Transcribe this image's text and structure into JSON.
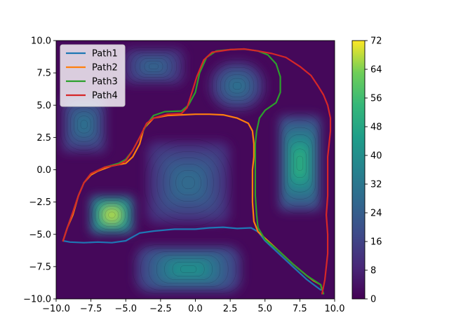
{
  "chart_data": {
    "type": "line",
    "title": "",
    "xlabel": "",
    "ylabel": "",
    "xlim": [
      -10,
      10
    ],
    "ylim": [
      -10,
      10
    ],
    "xticks": [
      "−10.0",
      "−7.5",
      "−5.0",
      "−2.5",
      "0.0",
      "2.5",
      "5.0",
      "7.5",
      "10.0"
    ],
    "yticks": [
      "10.0",
      "7.5",
      "5.0",
      "2.5",
      "0.0",
      "−2.5",
      "−5.0",
      "−7.5",
      "−10.0"
    ],
    "xtick_values": [
      -10,
      -7.5,
      -5,
      -2.5,
      0,
      2.5,
      5,
      7.5,
      10
    ],
    "ytick_values": [
      10,
      7.5,
      5,
      2.5,
      0,
      -2.5,
      -5,
      -7.5,
      -10
    ],
    "legend_position": "top-left",
    "background": "filled contour cost map (viridis)",
    "colorbar": {
      "colormap": "viridis",
      "range": [
        0,
        72
      ],
      "ticks": [
        "72",
        "64",
        "56",
        "48",
        "40",
        "32",
        "24",
        "16",
        "8",
        "0"
      ],
      "tick_values": [
        72,
        64,
        56,
        48,
        40,
        32,
        24,
        16,
        8,
        0
      ]
    },
    "cost_regions": [
      {
        "center": [
          -6,
          -3.5
        ],
        "peak": 68,
        "shape": "square"
      },
      {
        "center": [
          -8,
          3.5
        ],
        "peak": 30,
        "shape": "rectangle"
      },
      {
        "center": [
          -3,
          8
        ],
        "peak": 26,
        "shape": "rectangle"
      },
      {
        "center": [
          3,
          6.5
        ],
        "peak": 30,
        "shape": "oval"
      },
      {
        "center": [
          -0.5,
          -1
        ],
        "peak": 28,
        "shape": "square"
      },
      {
        "center": [
          7.5,
          0.5
        ],
        "peak": 50,
        "shape": "rectangle"
      },
      {
        "center": [
          -0.5,
          -7.7
        ],
        "peak": 40,
        "shape": "rectangle"
      }
    ],
    "series": [
      {
        "name": "Path1",
        "color": "#1f77b4",
        "points": [
          [
            -9.5,
            -5.5
          ],
          [
            -9,
            -5.6
          ],
          [
            -8,
            -5.65
          ],
          [
            -7,
            -5.6
          ],
          [
            -6,
            -5.65
          ],
          [
            -5,
            -5.5
          ],
          [
            -4.5,
            -5.2
          ],
          [
            -4,
            -4.9
          ],
          [
            -3,
            -4.75
          ],
          [
            -1.5,
            -4.6
          ],
          [
            0,
            -4.6
          ],
          [
            1,
            -4.5
          ],
          [
            2,
            -4.45
          ],
          [
            3,
            -4.55
          ],
          [
            4,
            -4.5
          ],
          [
            4.5,
            -4.8
          ],
          [
            5,
            -5.5
          ],
          [
            5.5,
            -6
          ],
          [
            6,
            -6.5
          ],
          [
            7,
            -7.5
          ],
          [
            8,
            -8.5
          ],
          [
            8.5,
            -8.9
          ],
          [
            9,
            -9.3
          ]
        ]
      },
      {
        "name": "Path2",
        "color": "#ff7f0e",
        "points": [
          [
            -9.5,
            -5.5
          ],
          [
            -9.2,
            -4.5
          ],
          [
            -8.8,
            -3.5
          ],
          [
            -8.4,
            -2
          ],
          [
            -8,
            -1
          ],
          [
            -7.5,
            -0.4
          ],
          [
            -7,
            -0.1
          ],
          [
            -6,
            0.3
          ],
          [
            -5,
            0.5
          ],
          [
            -4.5,
            1
          ],
          [
            -4,
            2
          ],
          [
            -3.7,
            3.2
          ],
          [
            -3,
            4
          ],
          [
            -2,
            4.2
          ],
          [
            -1,
            4.25
          ],
          [
            0,
            4.3
          ],
          [
            1,
            4.3
          ],
          [
            2,
            4.25
          ],
          [
            3,
            4
          ],
          [
            3.8,
            3.6
          ],
          [
            4.1,
            3
          ],
          [
            4.2,
            2
          ],
          [
            4.2,
            1
          ],
          [
            4.1,
            0
          ],
          [
            4.1,
            -1
          ],
          [
            4.1,
            -2.5
          ],
          [
            4.2,
            -4
          ],
          [
            4.5,
            -4.8
          ],
          [
            5,
            -5.3
          ],
          [
            6,
            -6.3
          ],
          [
            7,
            -7.3
          ],
          [
            8,
            -8.2
          ],
          [
            8.5,
            -8.6
          ],
          [
            9,
            -8.9
          ],
          [
            9.1,
            -9.3
          ]
        ]
      },
      {
        "name": "Path3",
        "color": "#2ca02c",
        "points": [
          [
            -9.5,
            -5.5
          ],
          [
            -9.2,
            -4.5
          ],
          [
            -8.8,
            -3.3
          ],
          [
            -8.4,
            -2
          ],
          [
            -8,
            -1
          ],
          [
            -7.5,
            -0.3
          ],
          [
            -6.5,
            0.2
          ],
          [
            -5.5,
            0.5
          ],
          [
            -5,
            0.8
          ],
          [
            -4.5,
            1.5
          ],
          [
            -4,
            2.5
          ],
          [
            -3.5,
            3.5
          ],
          [
            -3,
            4.2
          ],
          [
            -2.2,
            4.5
          ],
          [
            -1,
            4.55
          ],
          [
            -0.5,
            5
          ],
          [
            0,
            6
          ],
          [
            0.3,
            7.5
          ],
          [
            0.8,
            8.7
          ],
          [
            1.5,
            9.2
          ],
          [
            2.5,
            9.3
          ],
          [
            3.5,
            9.35
          ],
          [
            4.5,
            9.2
          ],
          [
            5.2,
            8.9
          ],
          [
            5.8,
            8.2
          ],
          [
            6.1,
            7.2
          ],
          [
            6.1,
            6
          ],
          [
            5.8,
            5.2
          ],
          [
            5,
            4.6
          ],
          [
            4.6,
            4
          ],
          [
            4.4,
            3
          ],
          [
            4.3,
            2
          ],
          [
            4.3,
            1
          ],
          [
            4.3,
            -1
          ],
          [
            4.3,
            -2
          ],
          [
            4.4,
            -3.5
          ],
          [
            4.5,
            -4.5
          ],
          [
            5,
            -5.4
          ],
          [
            6,
            -6.3
          ],
          [
            7,
            -7.3
          ],
          [
            8,
            -8.2
          ],
          [
            9,
            -8.9
          ],
          [
            9.2,
            -9.6
          ]
        ]
      },
      {
        "name": "Path4",
        "color": "#d62728",
        "points": [
          [
            -9.5,
            -5.5
          ],
          [
            -9.2,
            -4.5
          ],
          [
            -8.8,
            -3.3
          ],
          [
            -8.4,
            -2
          ],
          [
            -8,
            -1
          ],
          [
            -7.5,
            -0.3
          ],
          [
            -6.5,
            0.2
          ],
          [
            -5.5,
            0.4
          ],
          [
            -5,
            0.7
          ],
          [
            -4.5,
            1.5
          ],
          [
            -4,
            2.5
          ],
          [
            -3.5,
            3.6
          ],
          [
            -3,
            4
          ],
          [
            -2,
            4.3
          ],
          [
            -1,
            4.35
          ],
          [
            -0.6,
            4.8
          ],
          [
            -0.3,
            5.8
          ],
          [
            0.1,
            7.2
          ],
          [
            0.6,
            8.5
          ],
          [
            1.2,
            9.1
          ],
          [
            2.5,
            9.3
          ],
          [
            3.5,
            9.35
          ],
          [
            4.5,
            9.2
          ],
          [
            5.5,
            9
          ],
          [
            6.5,
            8.7
          ],
          [
            7.5,
            8
          ],
          [
            8.3,
            7.3
          ],
          [
            8.8,
            6.5
          ],
          [
            9.2,
            5.8
          ],
          [
            9.5,
            5
          ],
          [
            9.7,
            4
          ],
          [
            9.7,
            3
          ],
          [
            9.6,
            2
          ],
          [
            9.5,
            1
          ],
          [
            9.5,
            0
          ],
          [
            9.5,
            -1
          ],
          [
            9.5,
            -2
          ],
          [
            9.4,
            -3.5
          ],
          [
            9.5,
            -5
          ],
          [
            9.5,
            -6.5
          ],
          [
            9.4,
            -7.5
          ],
          [
            9.3,
            -8.5
          ],
          [
            9.1,
            -9.6
          ]
        ]
      }
    ]
  }
}
